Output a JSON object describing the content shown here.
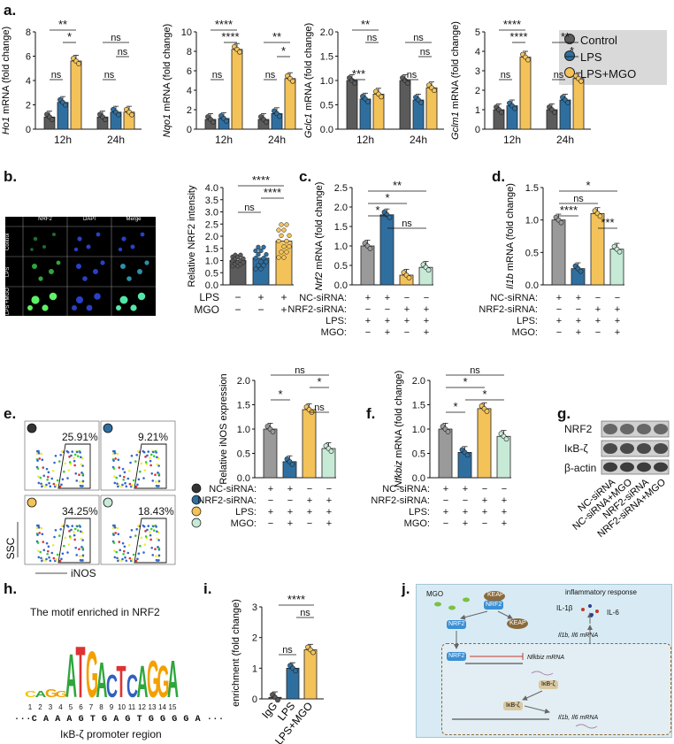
{
  "panels": {
    "a": "a.",
    "b": "b.",
    "c": "c.",
    "d": "d.",
    "e": "e.",
    "f": "f.",
    "g": "g.",
    "h": "h.",
    "i": "i.",
    "j": "j."
  },
  "colors": {
    "control": "#5b5b5b",
    "lps": "#2f6fa0",
    "mgo": "#f3c35a",
    "sirna": "#c7ead7",
    "gray": "#9a9a9a"
  },
  "legend": {
    "items": [
      "Control",
      "LPS",
      "LPS+MGO"
    ]
  },
  "panel_a": {
    "charts": [
      {
        "ylabel": "Ho1",
        "ylabel_suffix": " mRNA (fold change)",
        "yticks": [
          "0",
          "2",
          "4",
          "6",
          "8"
        ],
        "ylim": [
          0,
          8
        ],
        "groups": [
          "12h",
          "24h"
        ],
        "values": [
          [
            1,
            2.2,
            5.6
          ],
          [
            1,
            1.4,
            1.4
          ]
        ],
        "sig": [
          "**",
          "*",
          "ns",
          "ns",
          "ns",
          "ns"
        ]
      },
      {
        "ylabel": "Nqo1",
        "ylabel_suffix": " mRNA (fold change)",
        "yticks": [
          "0",
          "2",
          "4",
          "6",
          "8",
          "10"
        ],
        "ylim": [
          0,
          10
        ],
        "groups": [
          "12h",
          "24h"
        ],
        "values": [
          [
            1,
            1.1,
            8.2
          ],
          [
            1,
            1.6,
            5.2
          ]
        ],
        "sig": [
          "****",
          "****",
          "ns",
          "**",
          "*",
          "ns"
        ]
      },
      {
        "ylabel": "Gclc1",
        "ylabel_suffix": " mRNA (fold change)",
        "yticks": [
          "0.0",
          "0.5",
          "1.0",
          "1.5",
          "2.0"
        ],
        "ylim": [
          0,
          2
        ],
        "groups": [
          "12h",
          "24h"
        ],
        "values": [
          [
            1,
            0.62,
            0.72
          ],
          [
            1,
            0.6,
            0.85
          ]
        ],
        "sig": [
          "**",
          "ns",
          "***",
          "ns",
          "ns",
          "ns"
        ]
      },
      {
        "ylabel": "Gclm1",
        "ylabel_suffix": " mRNA (fold change)",
        "yticks": [
          "0",
          "1",
          "2",
          "3",
          "4",
          "5"
        ],
        "ylim": [
          0,
          5
        ],
        "groups": [
          "12h",
          "24h"
        ],
        "values": [
          [
            1,
            1.2,
            3.7
          ],
          [
            1,
            1.5,
            2.6
          ]
        ],
        "sig": [
          "****",
          "****",
          "ns",
          "**",
          "*",
          "ns"
        ]
      }
    ]
  },
  "panel_b": {
    "micro_headers": [
      "NRF2",
      "DAPI",
      "Merge"
    ],
    "micro_rows": [
      "Control",
      "LPS",
      "LPS +MGO"
    ],
    "ylabel": "Relative NRF2 intensity",
    "yticks": [
      "0.0",
      "0.5",
      "1.0",
      "1.5",
      "2.0",
      "2.5",
      "3.0",
      "3.5",
      "4.0"
    ],
    "values": [
      1.0,
      1.1,
      1.8
    ],
    "sig": [
      "****",
      "ns",
      "****"
    ],
    "rows": [
      {
        "label": "LPS",
        "cells": [
          "−",
          "+",
          "+"
        ]
      },
      {
        "label": "MGO",
        "cells": [
          "−",
          "−",
          "+"
        ]
      }
    ]
  },
  "panel_c": {
    "ylabel": "Nrf2",
    "ylabel_suffix": " mRNA (fold change)",
    "yticks": [
      "0.0",
      "0.5",
      "1.0",
      "1.5",
      "2.0",
      "2.5"
    ],
    "values": [
      1.0,
      1.8,
      0.25,
      0.45
    ],
    "sig": [
      "**",
      "*",
      "*",
      "ns"
    ],
    "rows": [
      {
        "label": "NC-siRNA:",
        "cells": [
          "+",
          "+",
          "−",
          "−"
        ]
      },
      {
        "label": "NRF2-siRNA:",
        "cells": [
          "−",
          "−",
          "+",
          "+"
        ]
      },
      {
        "label": "LPS:",
        "cells": [
          "+",
          "+",
          "+",
          "+"
        ]
      },
      {
        "label": "MGO:",
        "cells": [
          "−",
          "+",
          "−",
          "+"
        ]
      }
    ]
  },
  "panel_d": {
    "ylabel": "Il1b",
    "ylabel_suffix": " mRNA (fold change)",
    "yticks": [
      "0.0",
      "0.5",
      "1.0",
      "1.5"
    ],
    "values": [
      1.0,
      0.25,
      1.1,
      0.55
    ],
    "sig": [
      "*",
      "ns",
      "****",
      "***"
    ],
    "rows": [
      {
        "label": "NC-siRNA:",
        "cells": [
          "+",
          "+",
          "−",
          "−"
        ]
      },
      {
        "label": "NRF2-siRNA:",
        "cells": [
          "−",
          "−",
          "+",
          "+"
        ]
      },
      {
        "label": "LPS:",
        "cells": [
          "+",
          "+",
          "+",
          "+"
        ]
      },
      {
        "label": "MGO:",
        "cells": [
          "−",
          "+",
          "−",
          "+"
        ]
      }
    ]
  },
  "panel_e": {
    "percents": [
      "25.91%",
      "9.21%",
      "34.25%",
      "18.43%"
    ],
    "ssc": "SSC",
    "inos": "iNOS",
    "ylabel": "Relative iNOS expression",
    "yticks": [
      "0.0",
      "0.5",
      "1.0",
      "1.5",
      "2.0"
    ],
    "values": [
      1.0,
      0.33,
      1.4,
      0.6
    ],
    "sig": [
      "ns",
      "*",
      "*",
      "ns"
    ],
    "rows": [
      {
        "label": "NC-siRNA:",
        "cells": [
          "+",
          "+",
          "−",
          "−"
        ]
      },
      {
        "label": "NRF2-siRNA:",
        "cells": [
          "−",
          "−",
          "+",
          "+"
        ]
      },
      {
        "label": "LPS:",
        "cells": [
          "+",
          "+",
          "+",
          "+"
        ]
      },
      {
        "label": "MGO:",
        "cells": [
          "−",
          "+",
          "−",
          "+"
        ]
      }
    ]
  },
  "panel_f": {
    "ylabel": "Nfkbiz",
    "ylabel_suffix": " mRNA (fold change)",
    "yticks": [
      "0.0",
      "0.5",
      "1.0",
      "1.5",
      "2.0"
    ],
    "values": [
      1.0,
      0.52,
      1.42,
      0.85
    ],
    "sig": [
      "ns",
      "*",
      "*",
      "*"
    ],
    "rows": [
      {
        "label": "NC-siRNA:",
        "cells": [
          "+",
          "+",
          "−",
          "−"
        ]
      },
      {
        "label": "NRF2-siRNA:",
        "cells": [
          "−",
          "−",
          "+",
          "+"
        ]
      },
      {
        "label": "LPS:",
        "cells": [
          "+",
          "+",
          "+",
          "+"
        ]
      },
      {
        "label": "MGO:",
        "cells": [
          "−",
          "+",
          "−",
          "+"
        ]
      }
    ]
  },
  "panel_g": {
    "bands": [
      "NRF2",
      "IκB-ζ",
      "β-actin"
    ],
    "lanes": [
      "NC-siRNA",
      "NC-siRNA+MGO",
      "NRF2-siRNA",
      "NRF2-siRNA+MGO"
    ]
  },
  "panel_h": {
    "title": "The motif enriched in NRF2",
    "positions": [
      "1",
      "2",
      "3",
      "4",
      "5",
      "6",
      "7",
      "8",
      "9",
      "10",
      "11",
      "12",
      "13",
      "14",
      "15"
    ],
    "sequence": "···C A A A G T G A G T G G G G A ···",
    "region": "IκB-ζ promoter region"
  },
  "panel_i": {
    "ylabel": "enrichment (fold change)",
    "yticks": [
      "0",
      "1",
      "2",
      "3"
    ],
    "categories": [
      "IgG",
      "LPS",
      "LPS+MGO"
    ],
    "values": [
      0.05,
      1.0,
      1.6
    ],
    "sig": [
      "****",
      "ns",
      "ns"
    ]
  },
  "panel_j": {
    "mgo": "MGO",
    "keap": "KEAP",
    "nrf2": "NRF2",
    "inflam": "inflammatory response",
    "il1b": "IL-1β",
    "il6": "IL-6",
    "mrna_top": "Il1b, Il6 mRNA",
    "nfkbiz": "Nfkbiz mRNA",
    "ikb": "IκB-ζ",
    "mrna_bottom": "Il1b, Il6 mRNA"
  },
  "chart_data": [
    {
      "type": "bar",
      "title": "",
      "ylabel": "Ho1 mRNA (fold change)",
      "categories": [
        "12h",
        "24h"
      ],
      "series": [
        {
          "name": "Control",
          "values": [
            1,
            1
          ]
        },
        {
          "name": "LPS",
          "values": [
            2.2,
            1.4
          ]
        },
        {
          "name": "LPS+MGO",
          "values": [
            5.6,
            1.4
          ]
        }
      ],
      "ylim": [
        0,
        8
      ]
    },
    {
      "type": "bar",
      "title": "",
      "ylabel": "Nqo1 mRNA (fold change)",
      "categories": [
        "12h",
        "24h"
      ],
      "series": [
        {
          "name": "Control",
          "values": [
            1,
            1
          ]
        },
        {
          "name": "LPS",
          "values": [
            1.1,
            1.6
          ]
        },
        {
          "name": "LPS+MGO",
          "values": [
            8.2,
            5.2
          ]
        }
      ],
      "ylim": [
        0,
        10
      ]
    },
    {
      "type": "bar",
      "title": "",
      "ylabel": "Gclc1 mRNA (fold change)",
      "categories": [
        "12h",
        "24h"
      ],
      "series": [
        {
          "name": "Control",
          "values": [
            1,
            1
          ]
        },
        {
          "name": "LPS",
          "values": [
            0.62,
            0.6
          ]
        },
        {
          "name": "LPS+MGO",
          "values": [
            0.72,
            0.85
          ]
        }
      ],
      "ylim": [
        0,
        2
      ]
    },
    {
      "type": "bar",
      "title": "",
      "ylabel": "Gclm1 mRNA (fold change)",
      "categories": [
        "12h",
        "24h"
      ],
      "series": [
        {
          "name": "Control",
          "values": [
            1,
            1
          ]
        },
        {
          "name": "LPS",
          "values": [
            1.2,
            1.5
          ]
        },
        {
          "name": "LPS+MGO",
          "values": [
            3.7,
            2.6
          ]
        }
      ],
      "ylim": [
        0,
        5
      ]
    }
  ]
}
